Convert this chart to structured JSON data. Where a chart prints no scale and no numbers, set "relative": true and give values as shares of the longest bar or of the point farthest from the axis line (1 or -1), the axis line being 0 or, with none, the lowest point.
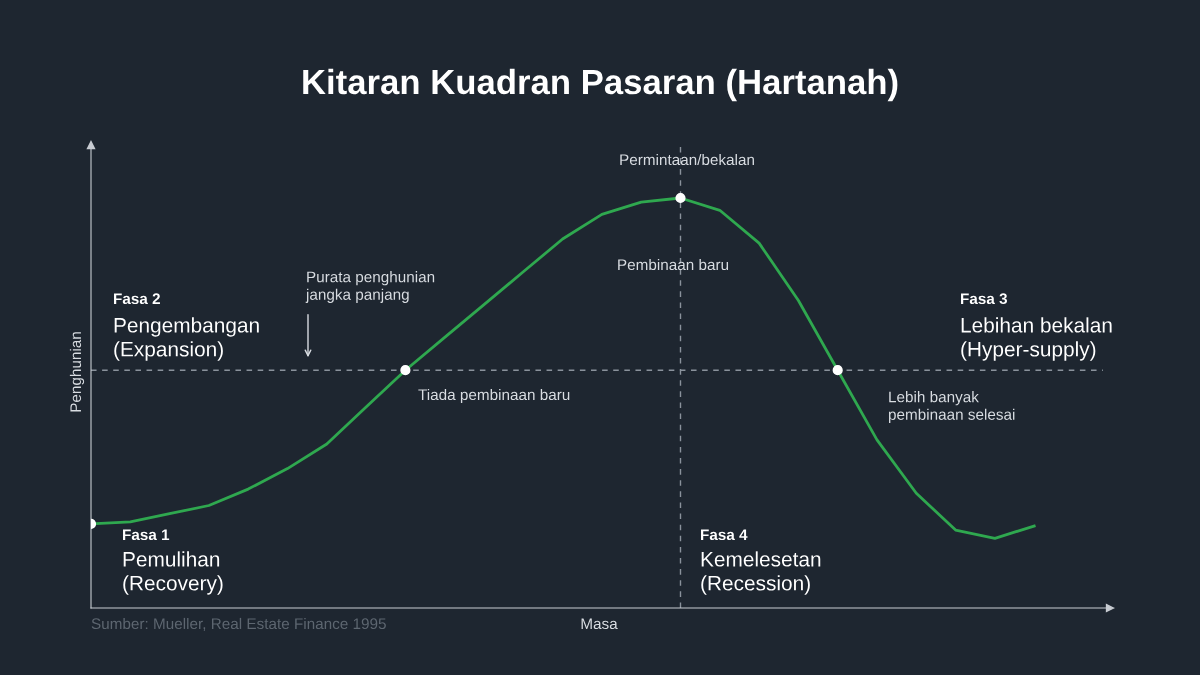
{
  "chart_data": {
    "type": "line",
    "title": "Kitaran Kuadran Pasaran (Hartanah)",
    "xlabel": "Masa",
    "ylabel": "Penghunian",
    "relative": true,
    "categories": [
      null,
      null,
      null,
      null,
      null,
      null,
      null,
      null,
      null,
      null,
      null,
      null,
      null,
      null,
      null,
      null,
      null,
      null,
      null,
      null,
      null,
      null,
      null,
      null,
      null
    ],
    "series": [
      {
        "color": "#2fa84f",
        "values": [
          0.205,
          0.21,
          0.23,
          0.25,
          0.29,
          0.34,
          0.4,
          0.49,
          0.58,
          0.66,
          0.74,
          0.82,
          0.9,
          0.96,
          0.99,
          1,
          0.97,
          0.89,
          0.75,
          0.58,
          0.41,
          0.28,
          0.19,
          0.17,
          0.2
        ]
      }
    ],
    "ref_lines": [
      {
        "axis": "y",
        "value": 0.58,
        "color": "#8a929c",
        "line_style": "dashed"
      }
    ],
    "annotations": [
      "Permintaan/bekalan",
      "Pembinaan baru",
      "Purata penghunian\njangka panjang",
      "Tiada pembinaan baru",
      "Lebih banyak\npembinaan selesai",
      "Fasa 2",
      "Pengembangan\n(Expansion)",
      "Fasa 3",
      "Lebihan bekalan\n(Hyper-supply)",
      "Fasa 1",
      "Pemulihan\n(Recovery)",
      "Fasa 4",
      "Kemelesetan\n(Recession)",
      "Sumber: Mueller, Real Estate Finance 1995"
    ],
    "grid": false,
    "legend": false
  }
}
